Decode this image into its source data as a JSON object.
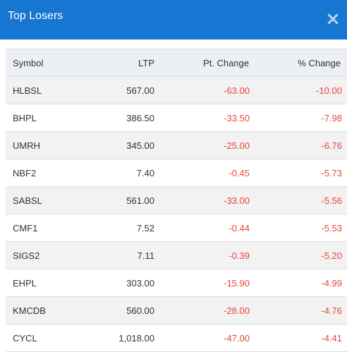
{
  "header": {
    "title": "Top Losers",
    "close_label": "×"
  },
  "table": {
    "columns": [
      "Symbol",
      "LTP",
      "Pt. Change",
      "% Change"
    ],
    "rows": [
      {
        "symbol": "HLBSL",
        "ltp": "567.00",
        "pt_change": "-63.00",
        "pct_change": "-10.00"
      },
      {
        "symbol": "BHPL",
        "ltp": "386.50",
        "pt_change": "-33.50",
        "pct_change": "-7.98"
      },
      {
        "symbol": "UMRH",
        "ltp": "345.00",
        "pt_change": "-25.00",
        "pct_change": "-6.76"
      },
      {
        "symbol": "NBF2",
        "ltp": "7.40",
        "pt_change": "-0.45",
        "pct_change": "-5.73"
      },
      {
        "symbol": "SABSL",
        "ltp": "561.00",
        "pt_change": "-33.00",
        "pct_change": "-5.56"
      },
      {
        "symbol": "CMF1",
        "ltp": "7.52",
        "pt_change": "-0.44",
        "pct_change": "-5.53"
      },
      {
        "symbol": "SIGS2",
        "ltp": "7.11",
        "pt_change": "-0.39",
        "pct_change": "-5.20"
      },
      {
        "symbol": "EHPL",
        "ltp": "303.00",
        "pt_change": "-15.90",
        "pct_change": "-4.99"
      },
      {
        "symbol": "KMCDB",
        "ltp": "560.00",
        "pt_change": "-28.00",
        "pct_change": "-4.76"
      },
      {
        "symbol": "CYCL",
        "ltp": "1,018.00",
        "pt_change": "-47.00",
        "pct_change": "-4.41"
      }
    ]
  },
  "colors": {
    "header_bg": "#1676d2",
    "negative": "#e8453c",
    "row_alt": "#f2f2f2",
    "head_bg": "#eceff3"
  }
}
